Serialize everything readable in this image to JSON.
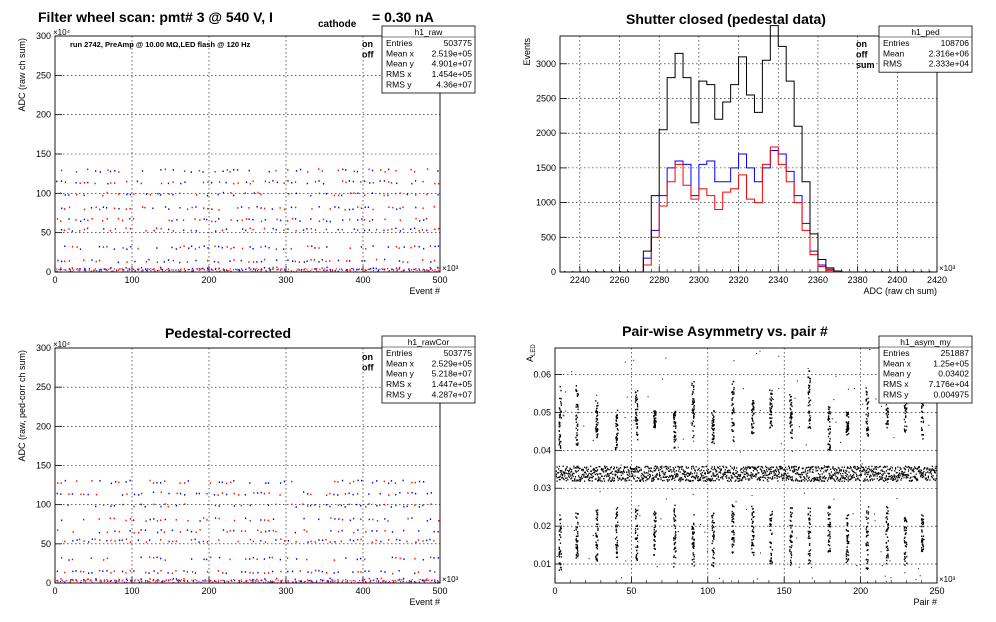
{
  "header": {
    "main_title": "Filter wheel scan: pmt#   3 @   540 V, I",
    "main_title_sub": "cathode",
    "main_title_tail": "= 0.30 nA"
  },
  "panels": [
    {
      "title": "",
      "run_note": "run 2742, PreAmp @ 10.00 MΩ,LED flash @  120 Hz",
      "legend": [
        {
          "label": "on",
          "color": "#0000ff"
        },
        {
          "label": "off",
          "color": "#ff0000"
        }
      ],
      "stats": {
        "name": "h1_raw",
        "rows": [
          [
            "Entries",
            "503775"
          ],
          [
            "Mean x",
            "2.519e+05"
          ],
          [
            "Mean y",
            "4.901e+07"
          ],
          [
            "RMS x",
            "1.454e+05"
          ],
          [
            "RMS y",
            "4.36e+07"
          ]
        ]
      }
    },
    {
      "title": "Shutter closed (pedestal data)",
      "legend": [
        {
          "label": "on",
          "color": "#0000ff"
        },
        {
          "label": "off",
          "color": "#ff0000"
        },
        {
          "label": "sum",
          "color": "#000000"
        }
      ],
      "stats": {
        "name": "h1_ped",
        "rows": [
          [
            "Entries",
            "108706"
          ],
          [
            "Mean",
            "2.316e+06"
          ],
          [
            "RMS",
            "2.333e+04"
          ]
        ]
      }
    },
    {
      "title": "Pedestal-corrected",
      "legend": [
        {
          "label": "on",
          "color": "#0000ff"
        },
        {
          "label": "off",
          "color": "#ff0000"
        }
      ],
      "stats": {
        "name": "h1_rawCor",
        "rows": [
          [
            "Entries",
            "503775"
          ],
          [
            "Mean x",
            "2.529e+05"
          ],
          [
            "Mean y",
            "5.218e+07"
          ],
          [
            "RMS x",
            "1.447e+05"
          ],
          [
            "RMS y",
            "4.287e+07"
          ]
        ]
      }
    },
    {
      "title": "Pair-wise Asymmetry vs. pair #",
      "stats": {
        "name": "h1_asym_my",
        "rows": [
          [
            "Entries",
            "251887"
          ],
          [
            "Mean x",
            "1.25e+05"
          ],
          [
            "Mean y",
            "0.03402"
          ],
          [
            "RMS x",
            "7.176e+04"
          ],
          [
            "RMS y",
            "0.004975"
          ]
        ]
      }
    }
  ],
  "chart_data": [
    {
      "type": "scatter",
      "title": "",
      "xlabel": "Event #",
      "ylabel": "ADC (raw ch sum)",
      "x_exponent": "×10³",
      "y_exponent": "×10⁴",
      "xlim": [
        0,
        500
      ],
      "ylim": [
        0,
        300
      ],
      "xticks": [
        0,
        100,
        200,
        300,
        400,
        500
      ],
      "yticks": [
        0,
        50,
        100,
        150,
        200,
        250,
        300
      ],
      "grid": true,
      "bands": [
        5,
        15,
        32,
        55,
        67,
        82,
        100,
        115,
        130
      ],
      "period": 20,
      "series": [
        {
          "name": "on",
          "color": "#0000ff"
        },
        {
          "name": "off",
          "color": "#ff0000"
        }
      ]
    },
    {
      "type": "line",
      "title": "Shutter closed (pedestal data)",
      "xlabel": "ADC (raw ch sum)",
      "ylabel": "Events",
      "x_exponent": "×10³",
      "xlim": [
        2230,
        2420
      ],
      "ylim": [
        0,
        3400
      ],
      "xticks": [
        2240,
        2260,
        2280,
        2300,
        2320,
        2340,
        2360,
        2380,
        2400,
        2420
      ],
      "yticks": [
        0,
        500,
        1000,
        1500,
        2000,
        2500,
        3000
      ],
      "grid": true,
      "x": [
        2268,
        2272,
        2276,
        2280,
        2284,
        2288,
        2292,
        2296,
        2300,
        2304,
        2308,
        2312,
        2316,
        2320,
        2324,
        2328,
        2332,
        2336,
        2340,
        2344,
        2348,
        2352,
        2356,
        2360,
        2364,
        2368,
        2372,
        2376
      ],
      "series": [
        {
          "name": "on",
          "color": "#0000ff",
          "values": [
            0,
            200,
            600,
            1100,
            1500,
            1600,
            1550,
            1100,
            1550,
            1600,
            1300,
            1300,
            1500,
            1700,
            1500,
            1300,
            1500,
            1750,
            1700,
            1450,
            1100,
            700,
            300,
            100,
            40,
            10,
            0,
            0
          ]
        },
        {
          "name": "off",
          "color": "#ff0000",
          "values": [
            0,
            100,
            500,
            950,
            1300,
            1550,
            1250,
            1050,
            1200,
            1100,
            900,
            1150,
            1200,
            1400,
            1050,
            1000,
            1550,
            1800,
            1550,
            1300,
            1000,
            600,
            250,
            80,
            20,
            5,
            0,
            0
          ]
        },
        {
          "name": "sum",
          "color": "#000000",
          "values": [
            0,
            300,
            1100,
            2050,
            2800,
            3150,
            2800,
            2150,
            2750,
            2700,
            2200,
            2450,
            2700,
            3100,
            2550,
            2300,
            3050,
            3550,
            3250,
            2750,
            2100,
            1300,
            550,
            180,
            60,
            15,
            0,
            0
          ]
        }
      ]
    },
    {
      "type": "scatter",
      "title": "Pedestal-corrected",
      "xlabel": "Event #",
      "ylabel": "ADC (raw, ped-corr ch sum)",
      "x_exponent": "×10³",
      "y_exponent": "×10⁴",
      "xlim": [
        0,
        500
      ],
      "ylim": [
        0,
        300
      ],
      "xticks": [
        0,
        100,
        200,
        300,
        400,
        500
      ],
      "yticks": [
        0,
        50,
        100,
        150,
        200,
        250,
        300
      ],
      "grid": true,
      "bands": [
        5,
        15,
        32,
        55,
        67,
        82,
        100,
        115,
        130
      ],
      "period": 20,
      "series": [
        {
          "name": "on",
          "color": "#0000ff"
        },
        {
          "name": "off",
          "color": "#ff0000"
        }
      ]
    },
    {
      "type": "scatter",
      "title": "Pair-wise Asymmetry vs. pair #",
      "xlabel": "Pair #",
      "ylabel": "A_LED",
      "x_exponent": "×10³",
      "xlim": [
        0,
        250
      ],
      "ylim": [
        0.005,
        0.067
      ],
      "xticks": [
        0,
        50,
        100,
        150,
        200,
        250
      ],
      "yticks": [
        0.01,
        0.02,
        0.03,
        0.04,
        0.05,
        0.06
      ],
      "grid": true,
      "central_band": [
        0.032,
        0.036
      ],
      "spike_x": [
        3,
        14,
        27,
        40,
        53,
        65,
        78,
        90,
        103,
        116,
        129,
        141,
        154,
        166,
        179,
        191,
        204,
        217,
        229,
        240
      ]
    }
  ]
}
